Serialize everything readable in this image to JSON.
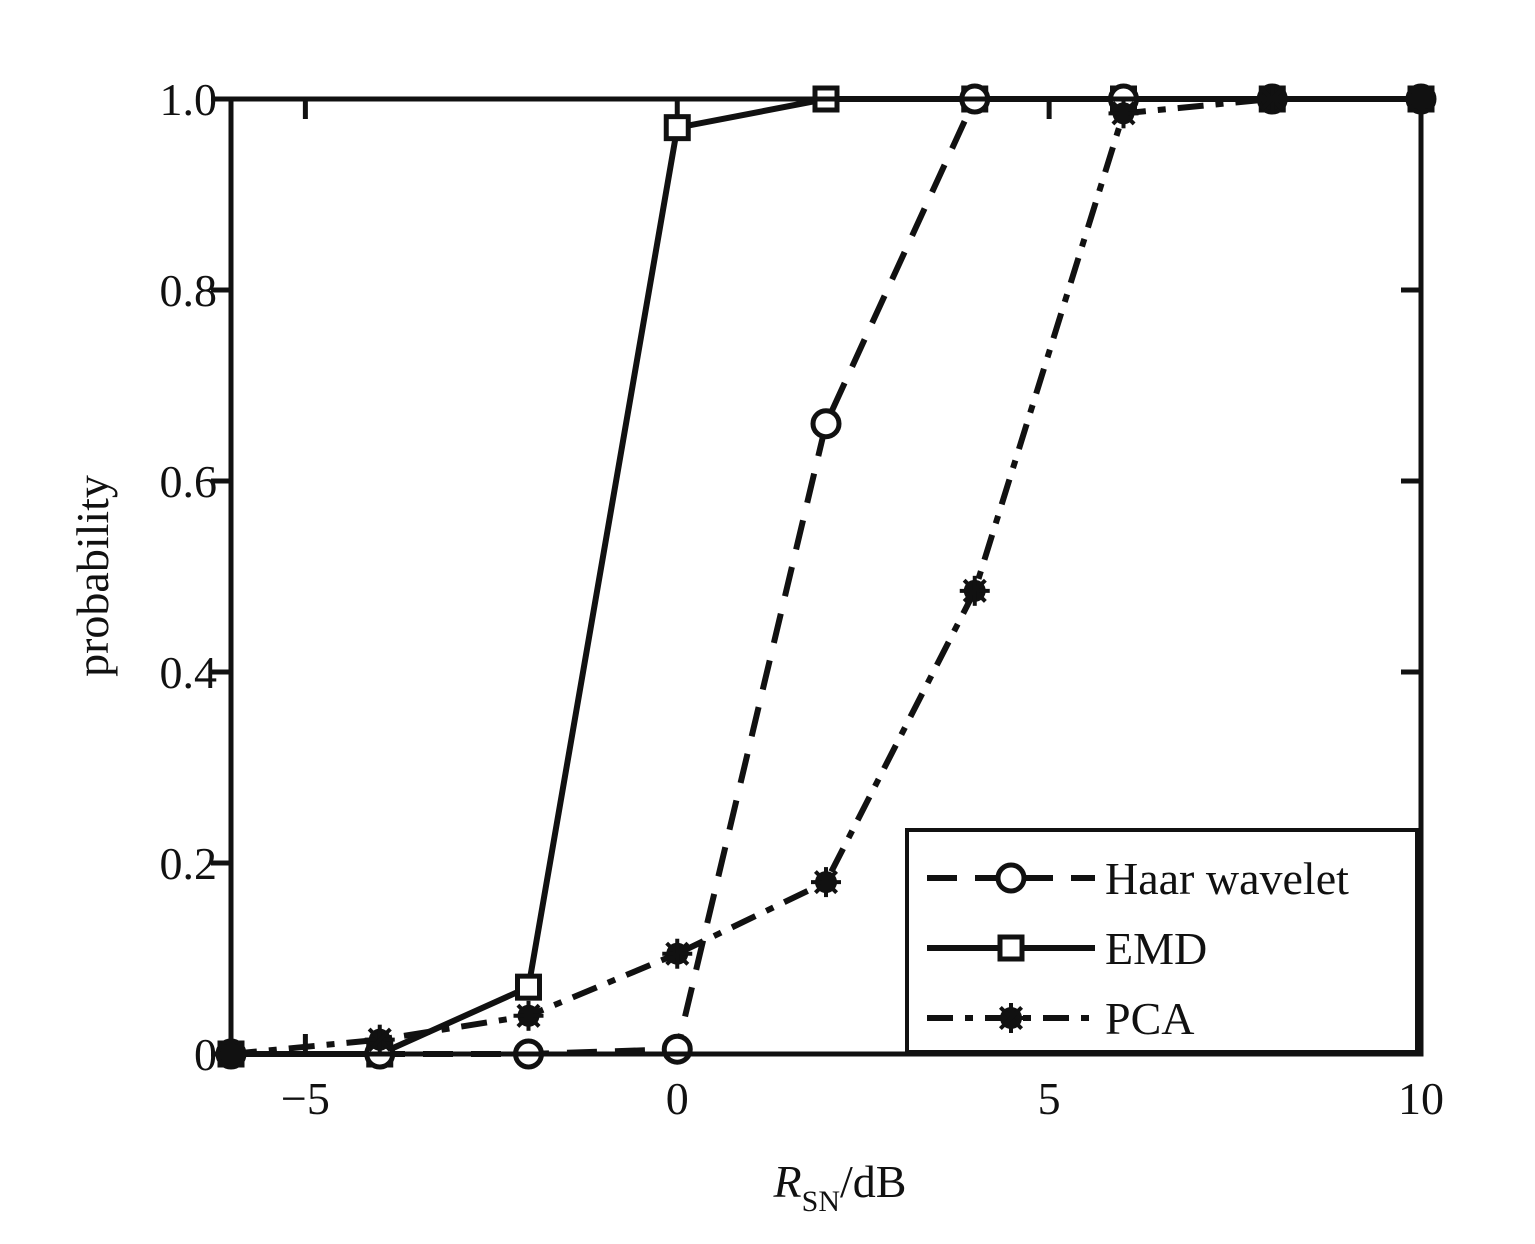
{
  "chart_data": {
    "type": "line",
    "title": "",
    "xlabel": "R_SN/dB",
    "xlabel_main": "R",
    "xlabel_sub": "SN",
    "xlabel_unit": "/dB",
    "ylabel": "probability",
    "xlim": [
      -6,
      10
    ],
    "ylim": [
      0,
      1
    ],
    "x_ticks": [
      -5,
      0,
      5,
      10
    ],
    "x_tick_labels": [
      "−5",
      "0",
      "5",
      "10"
    ],
    "y_ticks": [
      0,
      0.2,
      0.4,
      0.6,
      0.8,
      1.0
    ],
    "y_tick_labels": [
      "0",
      "0.2",
      "0.4",
      "0.6",
      "0.8",
      "1.0"
    ],
    "grid": false,
    "legend_position": "bottom-right",
    "x": [
      -6,
      -4,
      -2,
      0,
      2,
      4,
      6,
      8,
      10
    ],
    "series": [
      {
        "name": "Haar wavelet",
        "line_style": "dashed",
        "marker": "circle",
        "values": [
          0,
          0,
          0,
          0.005,
          0.66,
          1.0,
          1.0,
          1.0,
          1.0
        ]
      },
      {
        "name": "EMD",
        "line_style": "solid",
        "marker": "square",
        "values": [
          0,
          0,
          0.07,
          0.97,
          1.0,
          1.0,
          1.0,
          1.0,
          1.0
        ]
      },
      {
        "name": "PCA",
        "line_style": "dash-dot",
        "marker": "star",
        "values": [
          0,
          0.015,
          0.04,
          0.105,
          0.18,
          0.485,
          0.985,
          1.0,
          1.0
        ]
      }
    ],
    "colors": {
      "line": "#111111",
      "background": "#ffffff"
    }
  }
}
